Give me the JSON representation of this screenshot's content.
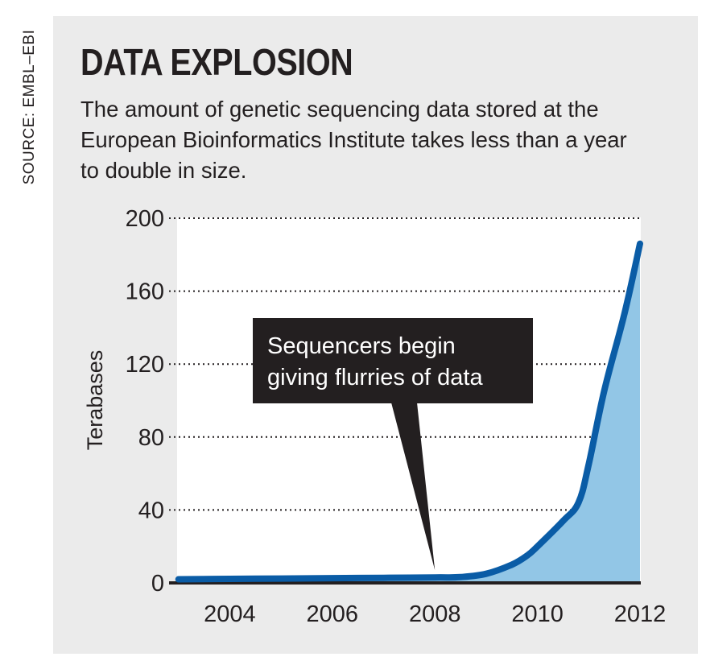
{
  "source": "SOURCE: EMBL–EBI",
  "title": "DATA EXPLOSION",
  "subtitle": "The amount of genetic sequencing data stored at the European Bioinformatics Institute takes less than a year to double in size.",
  "colors": {
    "background_panel": "#ebebeb",
    "plot_area": "#ffffff",
    "line": "#0a5ca6",
    "fill": "#92c6e6",
    "callout": "#231f20",
    "text": "#231f20"
  },
  "chart_data": {
    "type": "area",
    "title": "DATA EXPLOSION",
    "subtitle": "The amount of genetic sequencing data stored at the European Bioinformatics Institute takes less than a year to double in size.",
    "xlabel": "",
    "ylabel": "Terabases",
    "xlim": [
      2002.8,
      2012
    ],
    "ylim": [
      0,
      200
    ],
    "xticks": [
      2004,
      2006,
      2008,
      2010,
      2012
    ],
    "yticks": [
      0,
      40,
      80,
      120,
      160,
      200
    ],
    "grid": "horizontal dotted",
    "series": [
      {
        "points": [
          [
            2003,
            2
          ],
          [
            2004,
            2.2
          ],
          [
            2005,
            2.4
          ],
          [
            2006,
            2.6
          ],
          [
            2007,
            2.8
          ],
          [
            2008,
            3
          ],
          [
            2008.5,
            3.2
          ],
          [
            2009,
            5
          ],
          [
            2009.5,
            10
          ],
          [
            2009.8,
            15
          ],
          [
            2010,
            20
          ],
          [
            2010.5,
            34
          ],
          [
            2010.8,
            44
          ],
          [
            2011,
            65
          ],
          [
            2011.3,
            105
          ],
          [
            2011.7,
            148
          ],
          [
            2012,
            186
          ]
        ]
      }
    ],
    "annotations": [
      {
        "text_lines": [
          "Sequencers begin",
          "giving flurries of data"
        ],
        "points_to_x": 2008
      }
    ]
  }
}
